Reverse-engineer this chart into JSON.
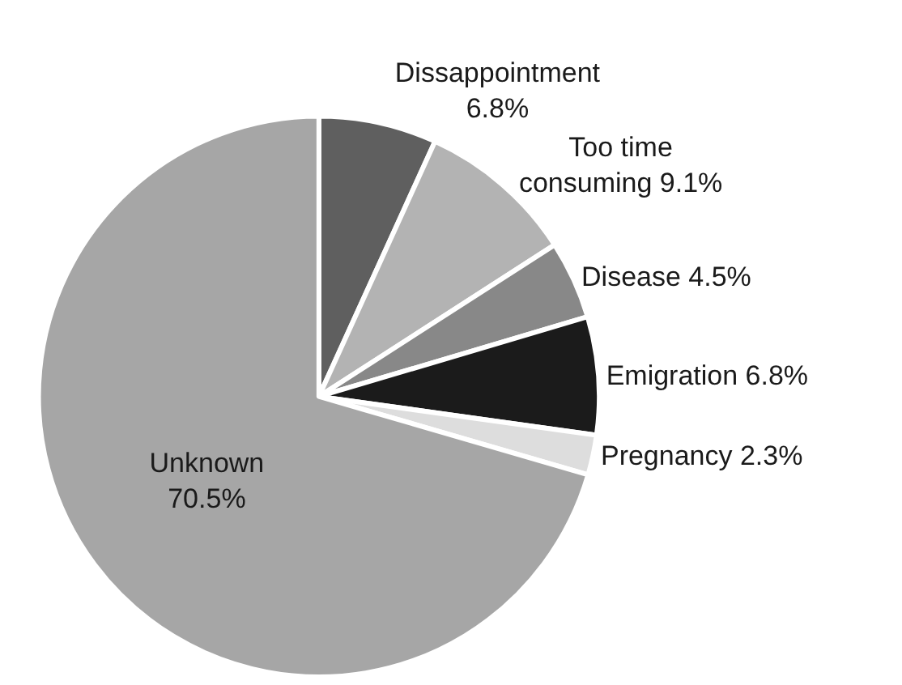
{
  "chart_data": {
    "type": "pie",
    "categories": [
      "Dissappointment",
      "Too time consuming",
      "Disease",
      "Emigration",
      "Pregnancy",
      "Unknown"
    ],
    "values": [
      6.8,
      9.1,
      4.5,
      6.8,
      2.3,
      70.5
    ],
    "colors": [
      "#5f5f5f",
      "#b3b3b3",
      "#888888",
      "#1b1b1b",
      "#dddddd",
      "#a6a6a6"
    ],
    "value_labels": [
      "6.8%",
      "9.1%",
      "4.5%",
      "6.8%",
      "2.3%",
      "70.5%"
    ],
    "legend": false
  }
}
